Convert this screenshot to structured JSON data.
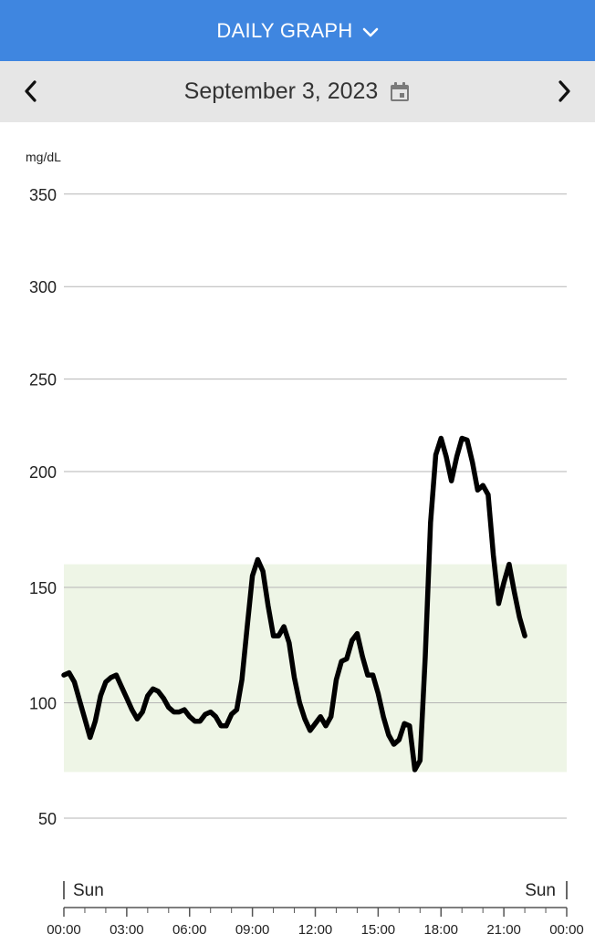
{
  "header": {
    "title": "DAILY GRAPH",
    "dropdown_icon": "chevron-down-icon"
  },
  "datebar": {
    "date": "September 3, 2023",
    "prev_icon": "chevron-left-icon",
    "next_icon": "chevron-right-icon",
    "calendar_icon": "calendar-icon"
  },
  "colors": {
    "header_bg": "#3f86e0",
    "target_band": "#eef5e6",
    "line": "#000000",
    "grid": "#b5b5b5"
  },
  "chart_data": {
    "type": "line",
    "ylabel": "mg/dL",
    "ylim": [
      50,
      350
    ],
    "y_ticks": [
      50,
      100,
      150,
      200,
      250,
      300,
      350
    ],
    "x_tick_labels": [
      "00:00",
      "03:00",
      "06:00",
      "09:00",
      "12:00",
      "15:00",
      "18:00",
      "21:00",
      "00:00"
    ],
    "x_range_hours": [
      0,
      24
    ],
    "day_labels": {
      "start": "Sun",
      "end": "Sun"
    },
    "target_range": [
      70,
      160
    ],
    "grid": true,
    "series": [
      {
        "x": [
          "00:00",
          "00:15",
          "00:30",
          "00:45",
          "01:00",
          "01:15",
          "01:30",
          "01:45",
          "02:00",
          "02:15",
          "02:30",
          "02:45",
          "03:00",
          "03:15",
          "03:30",
          "03:45",
          "04:00",
          "04:15",
          "04:30",
          "04:45",
          "05:00",
          "05:15",
          "05:30",
          "05:45",
          "06:00",
          "06:15",
          "06:30",
          "06:45",
          "07:00",
          "07:15",
          "07:30",
          "07:45",
          "08:00",
          "08:15",
          "08:30",
          "08:45",
          "09:00",
          "09:15",
          "09:30",
          "09:45",
          "10:00",
          "10:15",
          "10:30",
          "10:45",
          "11:00",
          "11:15",
          "11:30",
          "11:45",
          "12:00",
          "12:15",
          "12:30",
          "12:45",
          "13:00",
          "13:15",
          "13:30",
          "13:45",
          "14:00",
          "14:15",
          "14:30",
          "14:45",
          "15:00",
          "15:15",
          "15:30",
          "15:45",
          "16:00",
          "16:15",
          "16:30",
          "16:45",
          "17:00",
          "17:15",
          "17:30",
          "17:45",
          "18:00",
          "18:15",
          "18:30",
          "18:45",
          "19:00",
          "19:15",
          "19:30",
          "19:45",
          "20:00",
          "20:15",
          "20:30",
          "20:45",
          "21:00",
          "21:15",
          "21:30",
          "21:45",
          "22:00"
        ],
        "y": [
          112,
          113,
          109,
          101,
          93,
          85,
          92,
          103,
          109,
          111,
          112,
          107,
          102,
          97,
          93,
          96,
          103,
          106,
          105,
          102,
          98,
          96,
          96,
          97,
          94,
          92,
          92,
          95,
          96,
          94,
          90,
          90,
          95,
          97,
          110,
          133,
          155,
          162,
          157,
          142,
          129,
          129,
          133,
          126,
          111,
          100,
          93,
          88,
          91,
          94,
          90,
          94,
          110,
          118,
          119,
          127,
          130,
          120,
          112,
          112,
          104,
          94,
          86,
          82,
          84,
          91,
          90,
          71,
          75,
          120,
          178,
          209,
          218,
          208,
          196,
          208,
          218,
          217,
          205,
          192,
          194,
          190,
          164,
          143,
          152,
          160,
          148,
          137,
          129
        ]
      }
    ]
  }
}
